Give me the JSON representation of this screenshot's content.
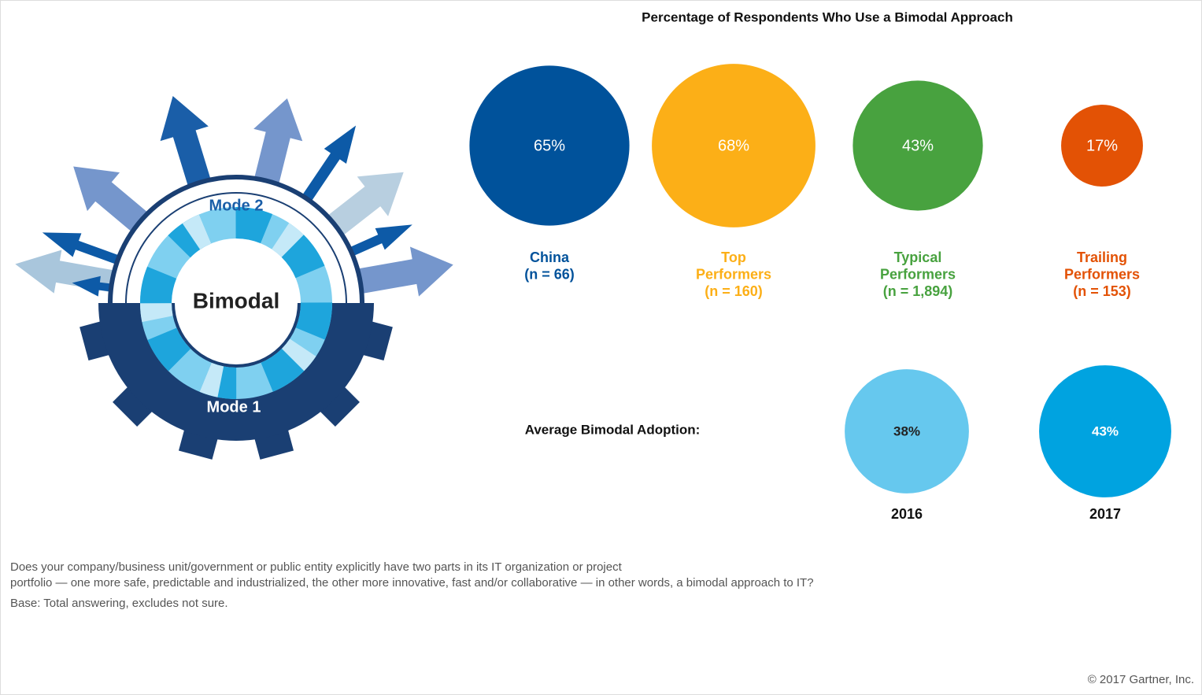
{
  "chart_data": [
    {
      "type": "bubble",
      "title": "Percentage of Respondents Who Use a Bimodal Approach",
      "categories": [
        [
          "China",
          "(n = 66)"
        ],
        [
          "Top",
          "Performers",
          "(n = 160)"
        ],
        [
          "Typical",
          "Performers",
          "(n = 1,894)"
        ],
        [
          "Trailing",
          "Performers",
          "(n = 153)"
        ]
      ],
      "values": [
        65,
        68,
        43,
        17
      ],
      "value_labels": [
        "65%",
        "68%",
        "43%",
        "17%"
      ],
      "colors": [
        "#00529b",
        "#fcaf17",
        "#48a23f",
        "#e35205"
      ]
    },
    {
      "type": "bubble",
      "title": "Average Bimodal Adoption:",
      "categories": [
        [
          "2016"
        ],
        [
          "2017"
        ]
      ],
      "values": [
        38,
        43
      ],
      "value_labels": [
        "38%",
        "43%"
      ],
      "colors": [
        "#66c8ee",
        "#00a3e0"
      ]
    }
  ],
  "illustration": {
    "center": "Bimodal",
    "top": "Mode 2",
    "bottom": "Mode 1"
  },
  "footer": {
    "question": [
      "Does your company/business unit/government or public entity explicitly have two parts in its IT organization or project",
      "portfolio — one more safe, predictable and industrialized, the other more innovative, fast and/or collaborative — in other words, a bimodal approach to IT?"
    ],
    "base": "Base: Total answering, excludes not sure.",
    "copyright": "© 2017 Gartner, Inc."
  }
}
